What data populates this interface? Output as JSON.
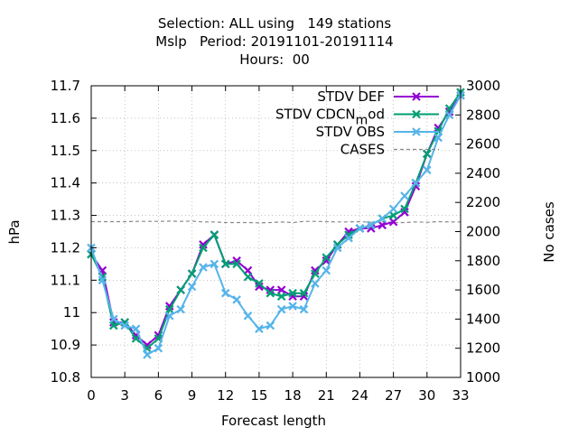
{
  "chart_data": {
    "type": "line",
    "title_lines": [
      "Selection: ALL using   149 stations",
      "Mslp   Period: 20191101-20191114",
      "Hours:  00"
    ],
    "xlabel": "Forecast length",
    "ylabel": "hPa",
    "y2label": "No cases",
    "xlim": [
      0,
      33
    ],
    "ylim": [
      10.8,
      11.7
    ],
    "y2lim": [
      1000,
      3000
    ],
    "xticks": [
      0,
      3,
      6,
      9,
      12,
      15,
      18,
      21,
      24,
      27,
      30,
      33
    ],
    "yticks": [
      10.8,
      10.9,
      11,
      11.1,
      11.2,
      11.3,
      11.4,
      11.5,
      11.6,
      11.7
    ],
    "y2ticks": [
      1000,
      1200,
      1400,
      1600,
      1800,
      2000,
      2200,
      2400,
      2600,
      2800,
      3000
    ],
    "grid": true,
    "legend_position": "top-right",
    "x": [
      0,
      1,
      2,
      3,
      4,
      5,
      6,
      7,
      8,
      9,
      10,
      11,
      12,
      13,
      14,
      15,
      16,
      17,
      18,
      19,
      20,
      21,
      22,
      23,
      24,
      25,
      26,
      27,
      28,
      29,
      30,
      31,
      32,
      33
    ],
    "series": [
      {
        "name": "STDV DEF",
        "axis": "left",
        "color": "#9400d3",
        "marker": "x",
        "values": [
          11.18,
          11.13,
          10.97,
          10.97,
          10.93,
          10.9,
          10.93,
          11.02,
          11.07,
          11.12,
          11.21,
          11.24,
          11.15,
          11.16,
          11.13,
          11.08,
          11.07,
          11.07,
          11.05,
          11.05,
          11.13,
          11.16,
          11.21,
          11.25,
          11.26,
          11.26,
          11.27,
          11.28,
          11.31,
          11.39,
          11.49,
          11.57,
          11.62,
          11.67
        ]
      },
      {
        "name": "STDV CDCN_mod",
        "axis": "left",
        "color": "#009e73",
        "marker": "x",
        "values": [
          11.18,
          11.11,
          10.96,
          10.97,
          10.92,
          10.89,
          10.92,
          11.01,
          11.07,
          11.12,
          11.2,
          11.24,
          11.15,
          11.15,
          11.11,
          11.09,
          11.06,
          11.05,
          11.06,
          11.06,
          11.12,
          11.17,
          11.21,
          11.24,
          11.26,
          11.27,
          11.29,
          11.3,
          11.32,
          11.4,
          11.49,
          11.56,
          11.63,
          11.68
        ]
      },
      {
        "name": "STDV OBS",
        "axis": "left",
        "color": "#56b4e9",
        "marker": "x",
        "values": [
          11.2,
          11.1,
          10.98,
          10.96,
          10.95,
          10.87,
          10.89,
          10.99,
          11.01,
          11.08,
          11.14,
          11.15,
          11.06,
          11.04,
          10.99,
          10.95,
          10.96,
          11.01,
          11.02,
          11.01,
          11.09,
          11.13,
          11.2,
          11.23,
          11.26,
          11.27,
          11.29,
          11.32,
          11.36,
          11.4,
          11.44,
          11.54,
          11.61,
          11.67
        ]
      },
      {
        "name": "CASES",
        "axis": "right",
        "color": "#888888",
        "marker": "none",
        "dashed": true,
        "values": [
          2068,
          2068,
          2068,
          2068,
          2070,
          2070,
          2070,
          2072,
          2070,
          2072,
          2066,
          2066,
          2062,
          2062,
          2062,
          2060,
          2062,
          2066,
          2062,
          2070,
          2070,
          2068,
          2066,
          2066,
          2068,
          2064,
          2068,
          2062,
          2062,
          2066,
          2064,
          2068,
          2066,
          2066
        ]
      }
    ]
  }
}
